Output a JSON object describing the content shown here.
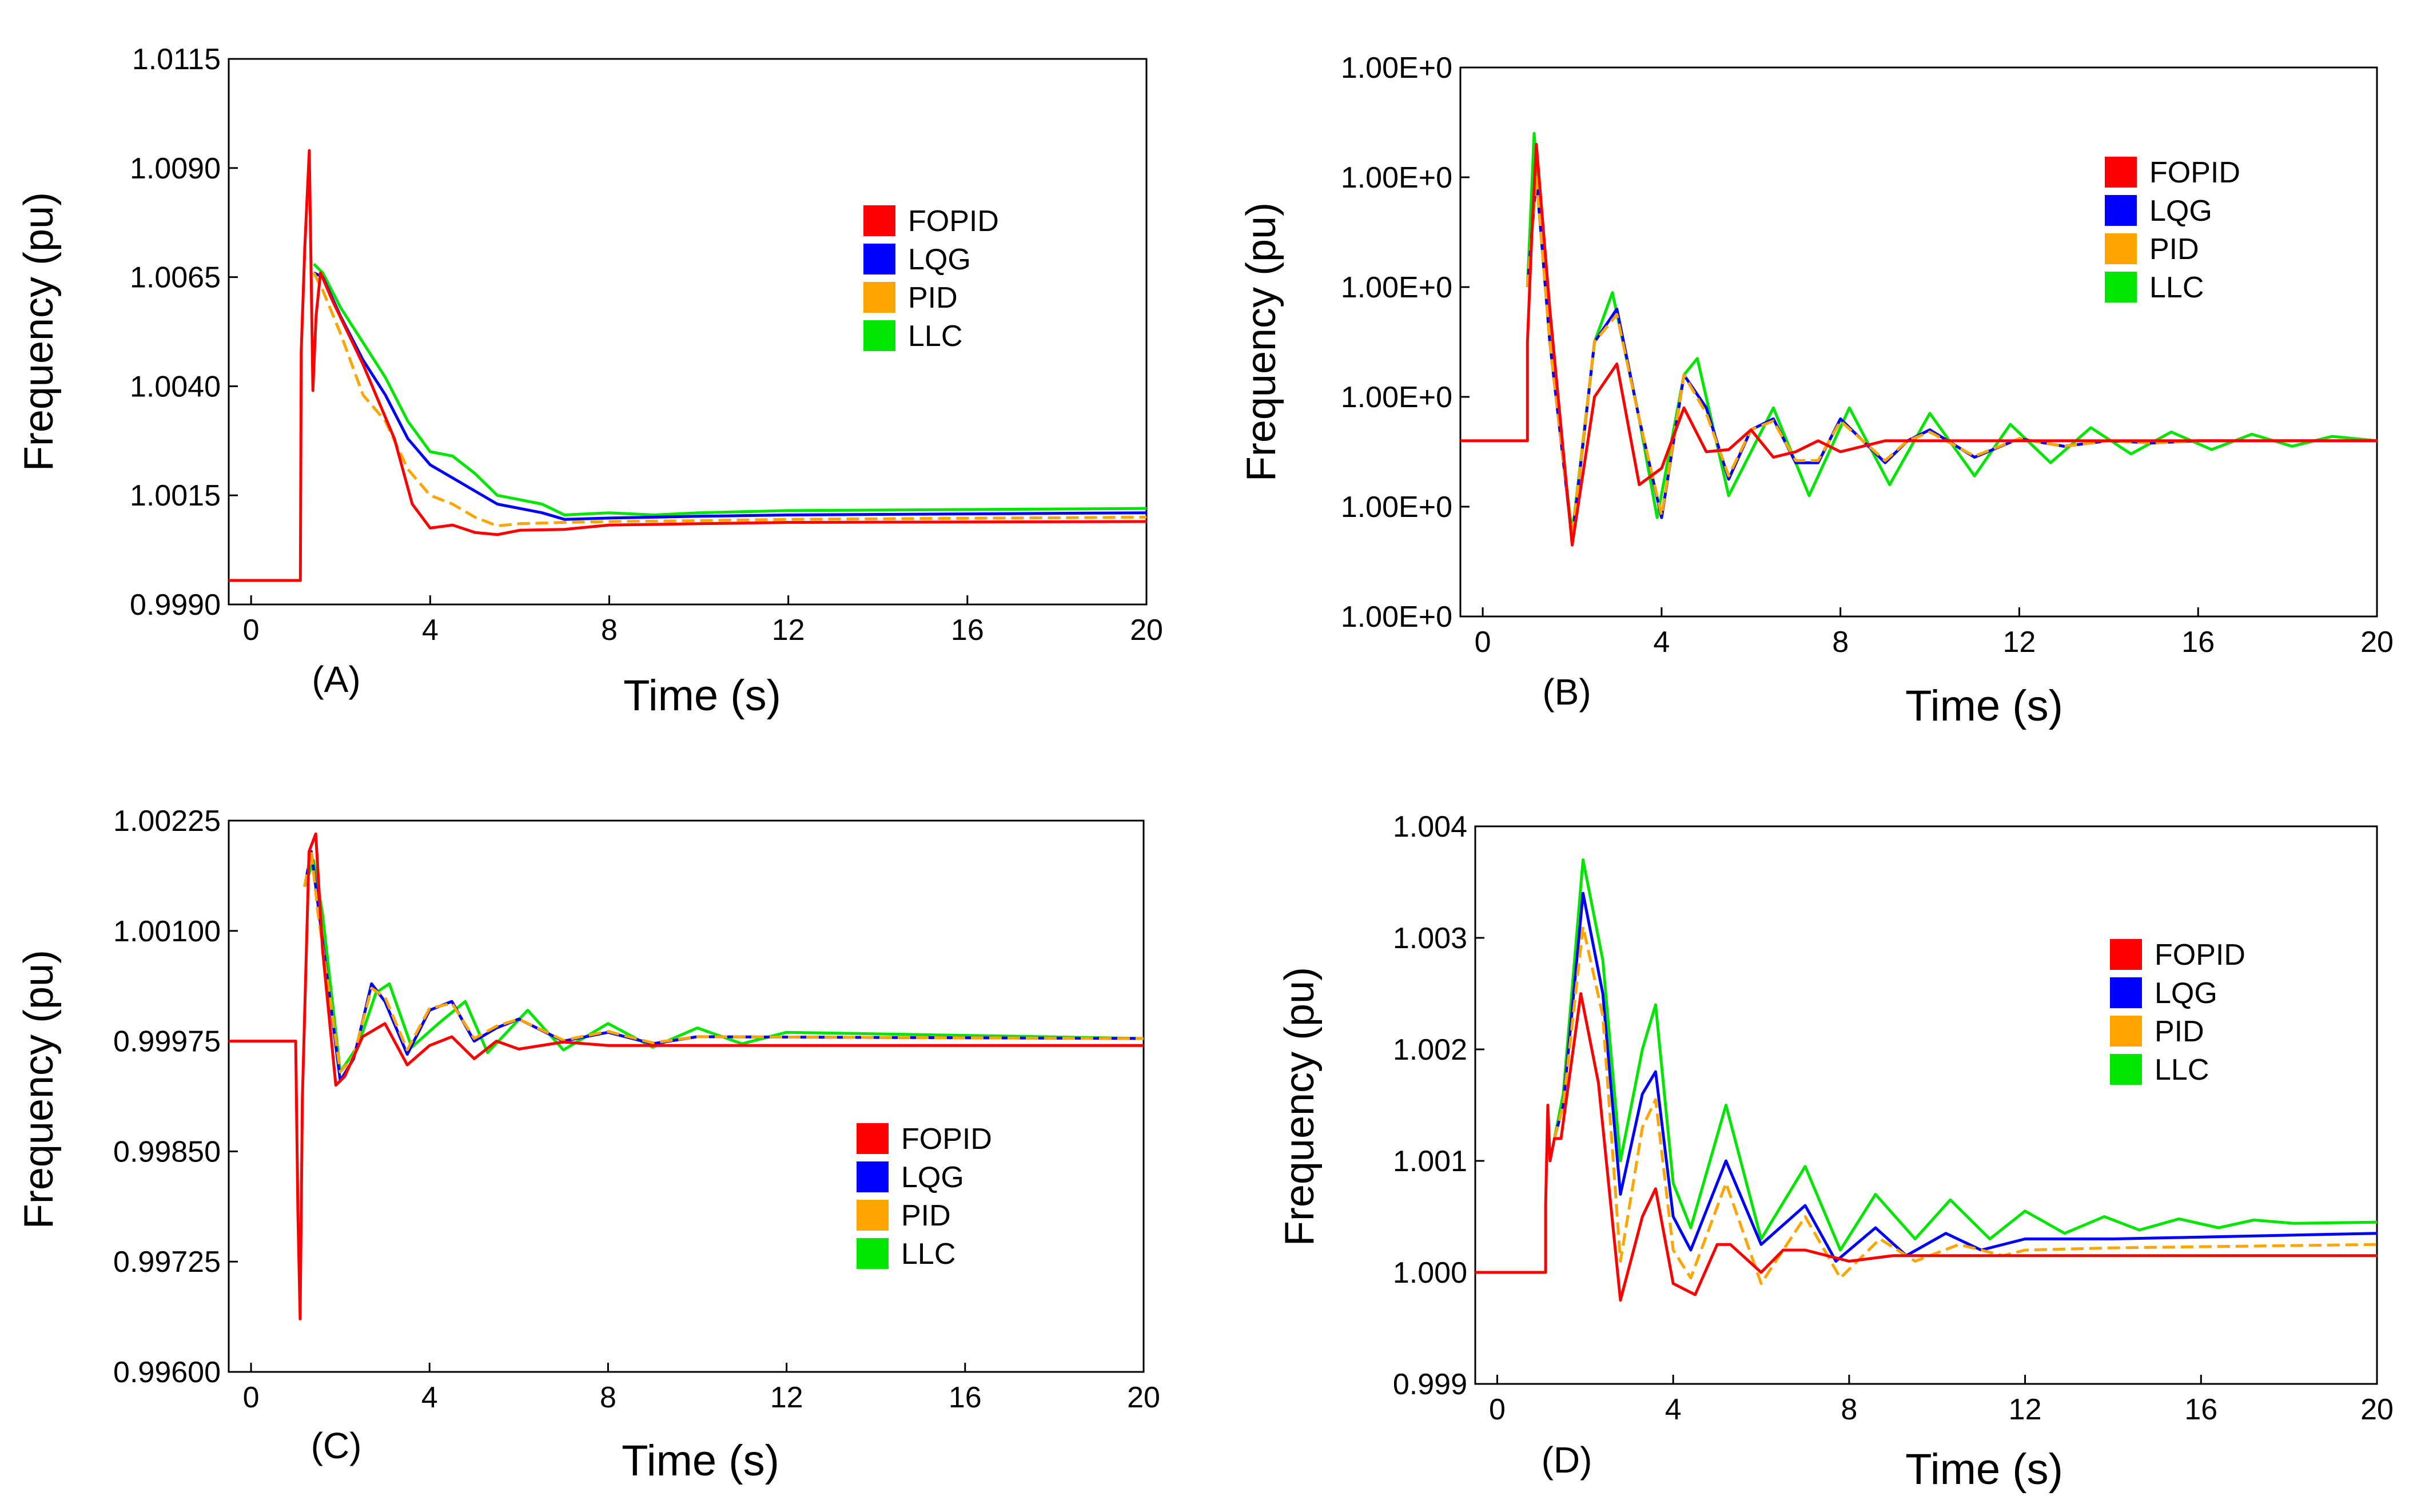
{
  "colors": {
    "FOPID": "#ff0000",
    "LQG": "#0000ff",
    "PID": "#ffa500",
    "LLC": "#00e600"
  },
  "chart_data": [
    {
      "type": "line",
      "panel_label": "(A)",
      "xlabel": "Time (s)",
      "ylabel": "Frequency (pu)",
      "xlim": [
        -0.5,
        20
      ],
      "ylim": [
        0.999,
        1.0115
      ],
      "xticks": [
        0,
        4,
        8,
        12,
        16,
        20
      ],
      "xtick_labels": [
        "0",
        "4",
        "8",
        "12",
        "16",
        "20"
      ],
      "yticks": [
        0.999,
        1.0015,
        1.004,
        1.0065,
        1.009,
        1.0115
      ],
      "ytick_labels": [
        "0.9990",
        "1.0015",
        "1.0040",
        "1.0065",
        "1.0090",
        "1.0115"
      ],
      "legend": [
        "FOPID",
        "LQG",
        "PID",
        "LLC"
      ],
      "legend_position": "upper-right",
      "series": [
        {
          "name": "FOPID",
          "x": [
            -0.5,
            1.0,
            1.1,
            1.12,
            1.2,
            1.3,
            1.38,
            1.45,
            1.55,
            1.8,
            2.5,
            3.2,
            3.6,
            4.0,
            4.5,
            5.0,
            5.5,
            6.0,
            7.0,
            8.0,
            10.0,
            12.0,
            20.0
          ],
          "y": [
            0.99955,
            0.99955,
            0.99955,
            1.0048,
            1.0072,
            1.0094,
            1.0039,
            1.0056,
            1.0066,
            1.006,
            1.0045,
            1.0028,
            1.0013,
            1.00075,
            1.00082,
            1.00065,
            1.0006,
            1.0007,
            1.00072,
            1.00082,
            1.00085,
            1.00088,
            1.0009
          ]
        },
        {
          "name": "LQG",
          "x": [
            1.4,
            1.6,
            2.0,
            2.5,
            3.0,
            3.5,
            4.0,
            4.5,
            5.0,
            5.5,
            6.0,
            6.5,
            7.0,
            8.0,
            9.0,
            10.0,
            12.0,
            20.0
          ],
          "y": [
            1.0066,
            1.0065,
            1.0056,
            1.0046,
            1.0038,
            1.0028,
            1.0022,
            1.0019,
            1.0016,
            1.0013,
            1.0012,
            1.0011,
            1.00095,
            1.00098,
            1.001,
            1.00102,
            1.00105,
            1.0011
          ]
        },
        {
          "name": "PID",
          "x": [
            1.4,
            1.6,
            2.0,
            2.5,
            3.0,
            3.5,
            4.0,
            4.5,
            5.0,
            5.5,
            6.0,
            7.0,
            8.0,
            10.0,
            12.0,
            20.0
          ],
          "y": [
            1.0066,
            1.0062,
            1.0052,
            1.0038,
            1.0032,
            1.0021,
            1.0015,
            1.0013,
            1.001,
            1.0008,
            1.00085,
            1.00088,
            1.0009,
            1.00092,
            1.00095,
            1.001
          ]
        },
        {
          "name": "LLC",
          "x": [
            1.4,
            1.6,
            2.0,
            2.5,
            3.0,
            3.5,
            4.0,
            4.5,
            5.0,
            5.5,
            6.0,
            6.5,
            7.0,
            8.0,
            9.0,
            10.0,
            12.0,
            20.0
          ],
          "y": [
            1.0068,
            1.0066,
            1.0058,
            1.005,
            1.0042,
            1.0032,
            1.0025,
            1.0024,
            1.002,
            1.0015,
            1.0014,
            1.0013,
            1.00105,
            1.0011,
            1.00105,
            1.0011,
            1.00115,
            1.0012
          ]
        }
      ]
    },
    {
      "type": "line",
      "panel_label": "(B)",
      "xlabel": "Time (s)",
      "ylabel": "Frequency (pu)",
      "xlim": [
        -0.5,
        20
      ],
      "ylim": [
        0,
        5
      ],
      "xticks": [
        0,
        4,
        8,
        12,
        16,
        20
      ],
      "xtick_labels": [
        "0",
        "4",
        "8",
        "12",
        "16",
        "20"
      ],
      "yticks": [
        0,
        1,
        2,
        3,
        4,
        5
      ],
      "ytick_labels": [
        "1.00E+0",
        "1.00E+0",
        "1.00E+0",
        "1.00E+0",
        "1.00E+0",
        "1.00E+0"
      ],
      "legend": [
        "FOPID",
        "LQG",
        "PID",
        "LLC"
      ],
      "legend_position": "upper-right",
      "series": [
        {
          "name": "FOPID",
          "x": [
            -0.5,
            1.0,
            1.0,
            1.1,
            1.2,
            1.5,
            2.0,
            2.5,
            3.0,
            3.5,
            4.0,
            4.5,
            5.0,
            5.5,
            6.0,
            6.5,
            7.0,
            7.5,
            8.0,
            9.0,
            10.0,
            12.0,
            20.0
          ],
          "y": [
            1.6,
            1.6,
            2.5,
            3.5,
            4.3,
            2.8,
            0.65,
            2.0,
            2.3,
            1.2,
            1.35,
            1.9,
            1.5,
            1.52,
            1.7,
            1.45,
            1.5,
            1.6,
            1.5,
            1.6,
            1.6,
            1.6,
            1.6
          ]
        },
        {
          "name": "LQG",
          "x": [
            1.0,
            1.2,
            1.5,
            2.0,
            2.5,
            3.0,
            3.5,
            4.0,
            4.5,
            5.0,
            5.5,
            6.0,
            6.5,
            7.0,
            7.5,
            8.0,
            8.5,
            9.0,
            9.5,
            10.0,
            11.0,
            12.0,
            13.0,
            14.0,
            15.0,
            16.0,
            20.0
          ],
          "y": [
            3.0,
            4.0,
            2.5,
            0.7,
            2.5,
            2.8,
            1.8,
            0.9,
            2.2,
            1.9,
            1.25,
            1.7,
            1.8,
            1.4,
            1.4,
            1.8,
            1.6,
            1.4,
            1.6,
            1.7,
            1.45,
            1.62,
            1.55,
            1.6,
            1.58,
            1.6,
            1.6
          ]
        },
        {
          "name": "PID",
          "x": [
            1.0,
            1.2,
            1.5,
            2.0,
            2.5,
            3.0,
            3.5,
            4.0,
            4.5,
            5.0,
            5.5,
            6.0,
            6.5,
            7.0,
            7.5,
            8.0,
            8.5,
            9.0,
            9.5,
            10.0,
            11.0,
            12.0,
            13.0,
            14.0,
            15.0,
            16.0,
            20.0
          ],
          "y": [
            3.0,
            4.0,
            2.5,
            0.72,
            2.5,
            2.75,
            1.8,
            0.92,
            2.2,
            1.85,
            1.28,
            1.7,
            1.78,
            1.42,
            1.42,
            1.78,
            1.6,
            1.42,
            1.6,
            1.68,
            1.46,
            1.62,
            1.55,
            1.6,
            1.58,
            1.6,
            1.6
          ]
        },
        {
          "name": "LLC",
          "x": [
            1.0,
            1.15,
            1.5,
            2.0,
            2.5,
            2.9,
            3.5,
            3.9,
            4.5,
            4.8,
            5.5,
            6.5,
            7.3,
            8.2,
            9.1,
            10.0,
            11.0,
            11.8,
            12.7,
            13.6,
            14.5,
            15.4,
            16.3,
            17.2,
            18.1,
            19.0,
            20.0
          ],
          "y": [
            3.0,
            4.4,
            2.5,
            0.75,
            2.5,
            2.95,
            1.8,
            0.9,
            2.2,
            2.35,
            1.1,
            1.9,
            1.1,
            1.9,
            1.2,
            1.85,
            1.28,
            1.75,
            1.4,
            1.72,
            1.48,
            1.68,
            1.52,
            1.66,
            1.55,
            1.64,
            1.6
          ]
        }
      ]
    },
    {
      "type": "line",
      "panel_label": "(C)",
      "xlabel": "Time (s)",
      "ylabel": "Frequency (pu)",
      "xlim": [
        -0.5,
        20
      ],
      "ylim": [
        0.996,
        1.00225
      ],
      "xticks": [
        0,
        4,
        8,
        12,
        16,
        20
      ],
      "xtick_labels": [
        "0",
        "4",
        "8",
        "12",
        "16",
        "20"
      ],
      "yticks": [
        0.996,
        0.99725,
        0.9985,
        0.99975,
        1.001,
        1.00225
      ],
      "ytick_labels": [
        "0.99600",
        "0.99725",
        "0.99850",
        "0.99975",
        "1.00100",
        "1.00225"
      ],
      "legend": [
        "FOPID",
        "LQG",
        "PID",
        "LLC"
      ],
      "legend_position": "lower-right",
      "series": [
        {
          "name": "FOPID",
          "x": [
            -0.5,
            1.0,
            1.05,
            1.1,
            1.15,
            1.3,
            1.45,
            1.6,
            1.9,
            2.1,
            2.5,
            3.0,
            3.5,
            4.0,
            4.5,
            5.0,
            5.5,
            6.0,
            7.0,
            8.0,
            9.0,
            10.0,
            12.0,
            20.0
          ],
          "y": [
            0.99975,
            0.99975,
            0.9978,
            0.9966,
            0.9991,
            1.0019,
            1.0021,
            1.0008,
            0.99925,
            0.99935,
            0.9998,
            0.99995,
            0.99948,
            0.9997,
            0.9998,
            0.99955,
            0.99975,
            0.99966,
            0.99974,
            0.9997,
            0.9997,
            0.9997,
            0.9997,
            0.9997
          ]
        },
        {
          "name": "LQG",
          "x": [
            1.2,
            1.35,
            1.5,
            2.0,
            2.3,
            2.7,
            3.0,
            3.5,
            4.0,
            4.5,
            5.0,
            5.5,
            6.0,
            7.0,
            8.0,
            9.0,
            10.0,
            20.0
          ],
          "y": [
            1.0015,
            1.0019,
            1.0013,
            0.9993,
            0.99955,
            1.0004,
            1.0002,
            0.9996,
            1.0001,
            1.0002,
            0.99975,
            0.9999,
            1.0,
            0.99975,
            0.99985,
            0.99972,
            0.9998,
            0.99978
          ]
        },
        {
          "name": "PID",
          "x": [
            1.2,
            1.35,
            1.5,
            2.0,
            2.3,
            2.7,
            3.0,
            3.5,
            4.0,
            4.5,
            5.0,
            5.5,
            6.0,
            7.0,
            8.0,
            9.0,
            10.0,
            20.0
          ],
          "y": [
            1.0015,
            1.0019,
            1.0012,
            0.9994,
            0.99958,
            1.00035,
            1.00025,
            0.99965,
            1.00012,
            1.00018,
            0.99978,
            0.99992,
            1.0,
            0.99976,
            0.99986,
            0.99973,
            0.9998,
            0.99978
          ]
        },
        {
          "name": "LLC",
          "x": [
            1.2,
            1.4,
            1.6,
            2.0,
            2.4,
            2.8,
            3.1,
            3.6,
            4.2,
            4.8,
            5.3,
            6.2,
            7.0,
            8.0,
            9.0,
            10.0,
            11.0,
            12.0,
            20.0
          ],
          "y": [
            1.0015,
            1.0018,
            1.0012,
            0.9994,
            0.9997,
            1.0003,
            1.0004,
            0.99968,
            0.99995,
            1.0002,
            0.99962,
            1.0001,
            0.99965,
            0.99995,
            0.99968,
            0.9999,
            0.99972,
            0.99985,
            0.99978
          ]
        }
      ]
    },
    {
      "type": "line",
      "panel_label": "(D)",
      "xlabel": "Time (s)",
      "ylabel": "Frequency (pu)",
      "xlim": [
        -0.5,
        20
      ],
      "ylim": [
        0.999,
        1.004
      ],
      "xticks": [
        0,
        4,
        8,
        12,
        16,
        20
      ],
      "xtick_labels": [
        "0",
        "4",
        "8",
        "12",
        "16",
        "20"
      ],
      "yticks": [
        0.999,
        1.0,
        1.001,
        1.002,
        1.003,
        1.004
      ],
      "ytick_labels": [
        "0.999",
        "1.000",
        "1.001",
        "1.002",
        "1.003",
        "1.004"
      ],
      "legend": [
        "FOPID",
        "LQG",
        "PID",
        "LLC"
      ],
      "legend_position": "middle-right",
      "series": [
        {
          "name": "FOPID",
          "x": [
            -0.5,
            1.1,
            1.1,
            1.15,
            1.2,
            1.3,
            1.45,
            1.9,
            2.3,
            2.8,
            3.3,
            3.6,
            4.0,
            4.5,
            5.0,
            5.3,
            6.0,
            6.5,
            7.0,
            8.0,
            9.0,
            10.0,
            12.0,
            20.0
          ],
          "y": [
            1.0,
            1.0,
            1.0006,
            1.0015,
            1.001,
            1.0012,
            1.0012,
            1.0025,
            1.0017,
            0.99975,
            1.0005,
            1.00075,
            0.9999,
            0.9998,
            1.00025,
            1.00025,
            1.0,
            1.0002,
            1.0002,
            1.0001,
            1.00015,
            1.00015,
            1.00015,
            1.00015
          ]
        },
        {
          "name": "LQG",
          "x": [
            1.3,
            1.5,
            1.95,
            2.4,
            2.8,
            3.3,
            3.6,
            4.0,
            4.4,
            5.2,
            6.0,
            7.0,
            7.7,
            8.6,
            9.3,
            10.2,
            11.0,
            12.0,
            14.0,
            20.0
          ],
          "y": [
            1.0012,
            1.0015,
            1.0034,
            1.0025,
            1.0007,
            1.0016,
            1.0018,
            1.0005,
            1.0002,
            1.001,
            1.00025,
            1.0006,
            1.0001,
            1.0004,
            1.00015,
            1.00035,
            1.0002,
            1.0003,
            1.0003,
            1.00035
          ]
        },
        {
          "name": "PID",
          "x": [
            1.3,
            1.5,
            1.95,
            2.4,
            2.8,
            3.3,
            3.6,
            4.0,
            4.4,
            5.2,
            6.0,
            7.0,
            7.8,
            8.7,
            9.5,
            10.5,
            11.5,
            12.0,
            14.0,
            20.0
          ],
          "y": [
            1.0012,
            1.0015,
            1.0031,
            1.0023,
            1.0001,
            1.0013,
            1.00155,
            1.0002,
            0.99995,
            1.0008,
            0.9999,
            1.0005,
            0.99995,
            1.0003,
            1.0001,
            1.00025,
            1.00015,
            1.0002,
            1.00022,
            1.00025
          ]
        },
        {
          "name": "LLC",
          "x": [
            1.3,
            1.5,
            1.95,
            2.4,
            2.8,
            3.3,
            3.6,
            4.0,
            4.4,
            5.2,
            6.0,
            7.0,
            7.8,
            8.6,
            9.5,
            10.3,
            11.2,
            12.0,
            12.9,
            13.8,
            14.6,
            15.5,
            16.4,
            17.2,
            18.1,
            20.0
          ],
          "y": [
            1.0012,
            1.0016,
            1.0037,
            1.0028,
            1.001,
            1.002,
            1.0024,
            1.0008,
            1.0004,
            1.0015,
            1.0003,
            1.00095,
            1.0002,
            1.0007,
            1.0003,
            1.00065,
            1.0003,
            1.00055,
            1.00035,
            1.0005,
            1.00038,
            1.00048,
            1.0004,
            1.00047,
            1.00044,
            1.00045
          ]
        }
      ]
    }
  ]
}
